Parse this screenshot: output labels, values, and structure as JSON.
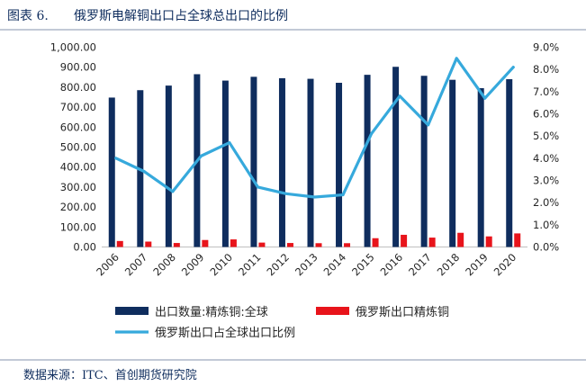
{
  "header": {
    "figure_label": "图表 6.",
    "title": "俄罗斯电解铜出口占全球总出口的比例"
  },
  "footer": {
    "source": "数据来源：ITC、首创期货研究院"
  },
  "chart_data": {
    "type": "bar",
    "categories": [
      "2006",
      "2007",
      "2008",
      "2009",
      "2010",
      "2011",
      "2012",
      "2013",
      "2014",
      "2015",
      "2016",
      "2017",
      "2018",
      "2019",
      "2020"
    ],
    "y_left": {
      "ticks": [
        "0.00",
        "100.00",
        "200.00",
        "300.00",
        "400.00",
        "500.00",
        "600.00",
        "700.00",
        "800.00",
        "900.00",
        "1,000.00"
      ],
      "ylim": [
        0,
        1000
      ]
    },
    "y_right": {
      "ticks": [
        "0.0%",
        "1.0%",
        "2.0%",
        "3.0%",
        "4.0%",
        "5.0%",
        "6.0%",
        "7.0%",
        "8.0%",
        "9.0%"
      ],
      "ylim": [
        0,
        9
      ]
    },
    "series": [
      {
        "name": "出口数量:精炼铜:全球",
        "type": "bar",
        "axis": "left",
        "color": "#0f2d5e",
        "values": [
          748,
          785,
          808,
          865,
          833,
          852,
          845,
          842,
          822,
          862,
          902,
          857,
          837,
          795,
          840
        ]
      },
      {
        "name": "俄罗斯出口精炼铜",
        "type": "bar",
        "axis": "left",
        "color": "#e8141b",
        "values": [
          30,
          27,
          20,
          35,
          38,
          22,
          20,
          19,
          19,
          44,
          61,
          47,
          71,
          53,
          68
        ]
      },
      {
        "name": "俄罗斯出口占全球出口比例",
        "type": "line",
        "axis": "right",
        "color": "#36a9dc",
        "values": [
          4.0,
          3.4,
          2.5,
          4.1,
          4.7,
          2.7,
          2.4,
          2.25,
          2.35,
          5.1,
          6.8,
          5.5,
          8.5,
          6.7,
          8.1
        ]
      }
    ],
    "legend_position": "bottom",
    "grid": false
  }
}
